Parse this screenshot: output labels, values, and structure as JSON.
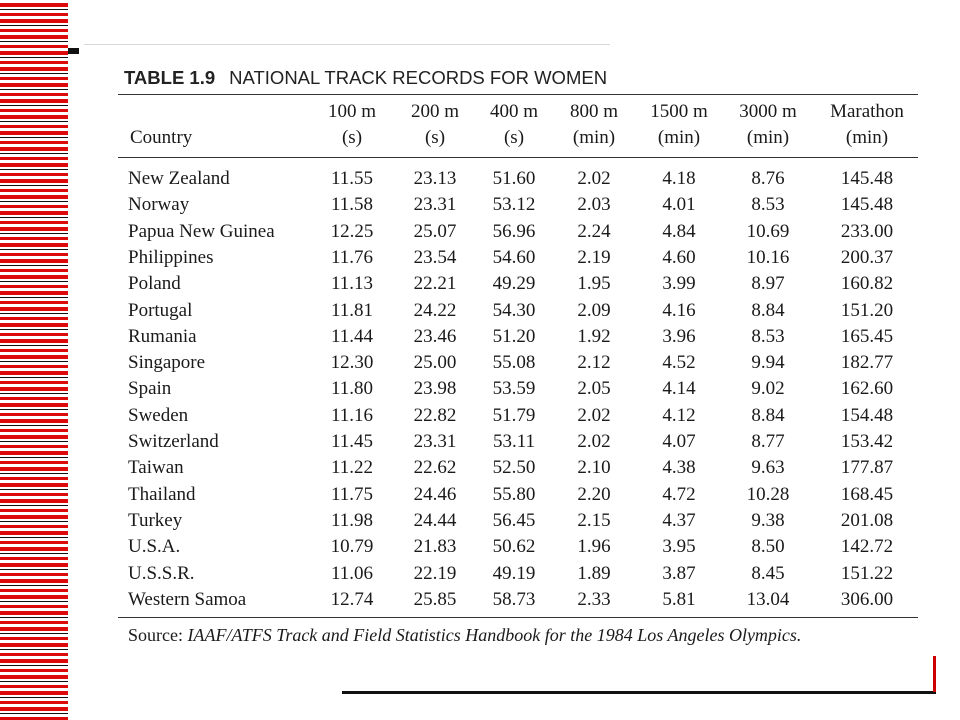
{
  "table": {
    "number": "TABLE 1.9",
    "title": "NATIONAL TRACK RECORDS FOR WOMEN",
    "columns": [
      {
        "line1": "Country",
        "line2": ""
      },
      {
        "line1": "100 m",
        "line2": "(s)"
      },
      {
        "line1": "200 m",
        "line2": "(s)"
      },
      {
        "line1": "400 m",
        "line2": "(s)"
      },
      {
        "line1": "800 m",
        "line2": "(min)"
      },
      {
        "line1": "1500 m",
        "line2": "(min)"
      },
      {
        "line1": "3000 m",
        "line2": "(min)"
      },
      {
        "line1": "Marathon",
        "line2": "(min)"
      }
    ],
    "rows": [
      [
        "New Zealand",
        "11.55",
        "23.13",
        "51.60",
        "2.02",
        "4.18",
        "8.76",
        "145.48"
      ],
      [
        "Norway",
        "11.58",
        "23.31",
        "53.12",
        "2.03",
        "4.01",
        "8.53",
        "145.48"
      ],
      [
        "Papua New Guinea",
        "12.25",
        "25.07",
        "56.96",
        "2.24",
        "4.84",
        "10.69",
        "233.00"
      ],
      [
        "Philippines",
        "11.76",
        "23.54",
        "54.60",
        "2.19",
        "4.60",
        "10.16",
        "200.37"
      ],
      [
        "Poland",
        "11.13",
        "22.21",
        "49.29",
        "1.95",
        "3.99",
        "8.97",
        "160.82"
      ],
      [
        "Portugal",
        "11.81",
        "24.22",
        "54.30",
        "2.09",
        "4.16",
        "8.84",
        "151.20"
      ],
      [
        "Rumania",
        "11.44",
        "23.46",
        "51.20",
        "1.92",
        "3.96",
        "8.53",
        "165.45"
      ],
      [
        "Singapore",
        "12.30",
        "25.00",
        "55.08",
        "2.12",
        "4.52",
        "9.94",
        "182.77"
      ],
      [
        "Spain",
        "11.80",
        "23.98",
        "53.59",
        "2.05",
        "4.14",
        "9.02",
        "162.60"
      ],
      [
        "Sweden",
        "11.16",
        "22.82",
        "51.79",
        "2.02",
        "4.12",
        "8.84",
        "154.48"
      ],
      [
        "Switzerland",
        "11.45",
        "23.31",
        "53.11",
        "2.02",
        "4.07",
        "8.77",
        "153.42"
      ],
      [
        "Taiwan",
        "11.22",
        "22.62",
        "52.50",
        "2.10",
        "4.38",
        "9.63",
        "177.87"
      ],
      [
        "Thailand",
        "11.75",
        "24.46",
        "55.80",
        "2.20",
        "4.72",
        "10.28",
        "168.45"
      ],
      [
        "Turkey",
        "11.98",
        "24.44",
        "56.45",
        "2.15",
        "4.37",
        "9.38",
        "201.08"
      ],
      [
        "U.S.A.",
        "10.79",
        "21.83",
        "50.62",
        "1.96",
        "3.95",
        "8.50",
        "142.72"
      ],
      [
        "U.S.S.R.",
        "11.06",
        "22.19",
        "49.19",
        "1.89",
        "3.87",
        "8.45",
        "151.22"
      ],
      [
        "Western Samoa",
        "12.74",
        "25.85",
        "58.73",
        "2.33",
        "5.81",
        "13.04",
        "306.00"
      ]
    ],
    "source_label": "Source:",
    "source_text": "IAAF/ATFS Track and Field Statistics Handbook for the 1984 Los Angeles Olympics."
  },
  "colors": {
    "stripe_red": "#dd0a0a",
    "stripe_black": "#111111",
    "text": "#1a1a1a"
  }
}
